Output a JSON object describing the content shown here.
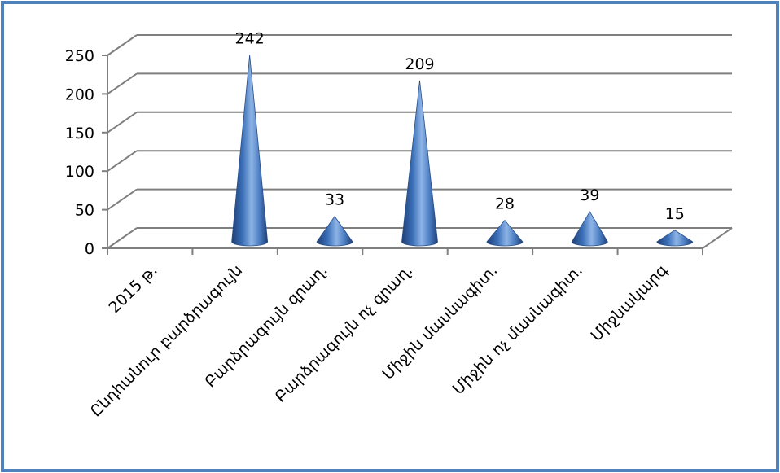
{
  "chart_data": {
    "type": "bar",
    "style": "3d-cone",
    "categories": [
      "2015 թ.",
      "Ընդհանուր բարձրագույն",
      "Բարձրագույն զրաղ.",
      "Բարձրագույն ոչ զրաղ.",
      "Միջին մասնագիտ.",
      "Միջին ոչ մասնագիտ.",
      "Միջնակարգ"
    ],
    "values": [
      null,
      242,
      33,
      209,
      28,
      39,
      15
    ],
    "data_labels": [
      "",
      "242",
      "33",
      "209",
      "28",
      "39",
      "15"
    ],
    "y_ticks": [
      "0",
      "50",
      "100",
      "150",
      "200",
      "250"
    ],
    "ylim": [
      0,
      250
    ],
    "grid": true,
    "legend": false,
    "series_color": "#4f81bd",
    "frame_color": "#4f81bd"
  }
}
